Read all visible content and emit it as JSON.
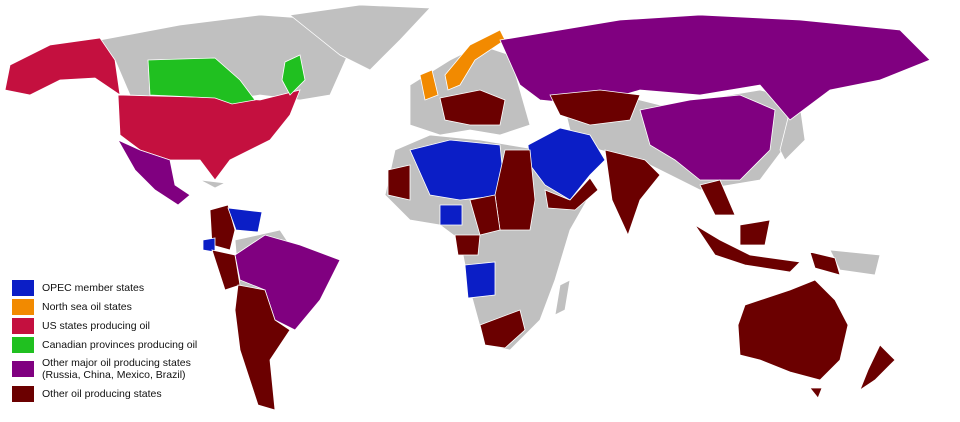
{
  "legend": [
    {
      "label": "OPEC member states",
      "color": "#0b1ec6"
    },
    {
      "label": "North sea oil states",
      "color": "#f28a00"
    },
    {
      "label": "US states producing oil",
      "color": "#c4103f"
    },
    {
      "label": "Canadian provinces producing oil",
      "color": "#20c020"
    },
    {
      "label": "Other major oil producing states (Russia, China, Mexico, Brazil)",
      "color": "#800080"
    },
    {
      "label": "Other oil producing states",
      "color": "#6b0000"
    }
  ],
  "colors": {
    "other_land": "#c0c0c0",
    "ocean": "#ffffff"
  }
}
